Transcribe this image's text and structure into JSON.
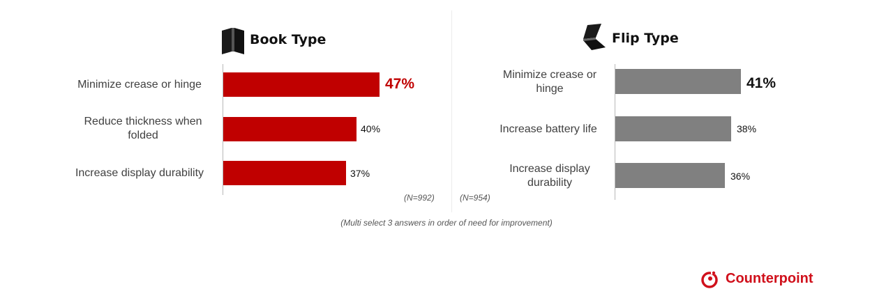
{
  "colors": {
    "book_bar": "#c00000",
    "flip_bar": "#808080",
    "brand": "#d0101b"
  },
  "chart_data": [
    {
      "type": "bar",
      "orientation": "horizontal",
      "title": "Book Type",
      "title_icon": "book-phone-icon",
      "categories": [
        "Minimize crease or hinge",
        "Reduce thickness when folded",
        "Increase display durability"
      ],
      "values": [
        47,
        40,
        37
      ],
      "value_labels": [
        "47%",
        "40%",
        "37%"
      ],
      "note": "(N=992)",
      "unit": "%"
    },
    {
      "type": "bar",
      "orientation": "horizontal",
      "title": "Flip Type",
      "title_icon": "flip-phone-icon",
      "categories": [
        "Minimize crease or hinge",
        "Increase battery life",
        "Increase display durability"
      ],
      "values": [
        41,
        38,
        36
      ],
      "value_labels": [
        "41%",
        "38%",
        "36%"
      ],
      "note": "(N=954)",
      "unit": "%"
    }
  ],
  "footnote": "(Multi select 3 answers in order of  need for improvement)",
  "brand": {
    "name": "Counterpoint",
    "icon": "counterpoint-logo-icon"
  }
}
